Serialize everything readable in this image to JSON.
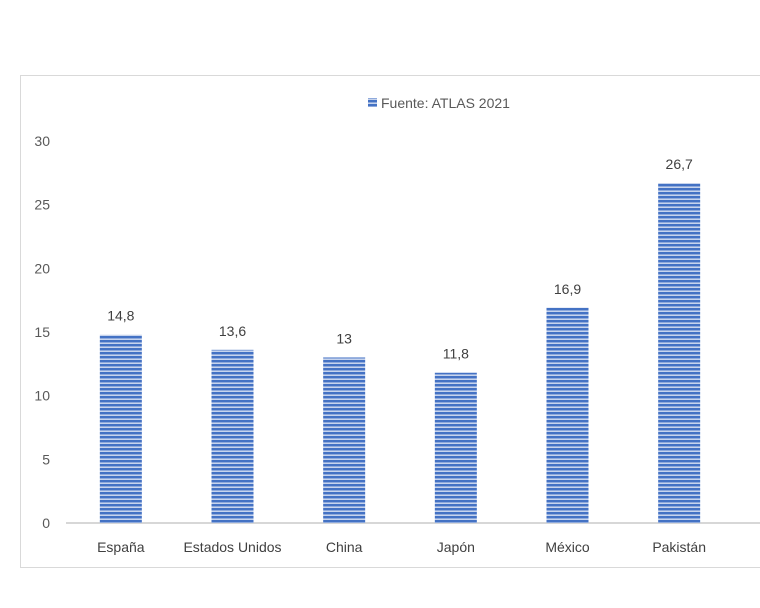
{
  "chart_data": {
    "type": "bar",
    "categories": [
      "España",
      "Estados Unidos",
      "China",
      "Japón",
      "México",
      "Pakistán"
    ],
    "series": [
      {
        "name": "Fuente: ATLAS 2021",
        "values": [
          14.8,
          13.6,
          13,
          11.8,
          16.9,
          26.7
        ],
        "data_labels": [
          "14,8",
          "13,6",
          "13",
          "11,8",
          "16,9",
          "26,7"
        ]
      }
    ],
    "y_ticks": [
      "0",
      "5",
      "10",
      "15",
      "20",
      "25",
      "30"
    ],
    "ylim": [
      0,
      30
    ],
    "legend_position": "top",
    "grid": false,
    "colors": {
      "bar_fill": "#4472C4",
      "bar_stripe": "#ffffff",
      "axis": "#bfbfbf"
    }
  }
}
